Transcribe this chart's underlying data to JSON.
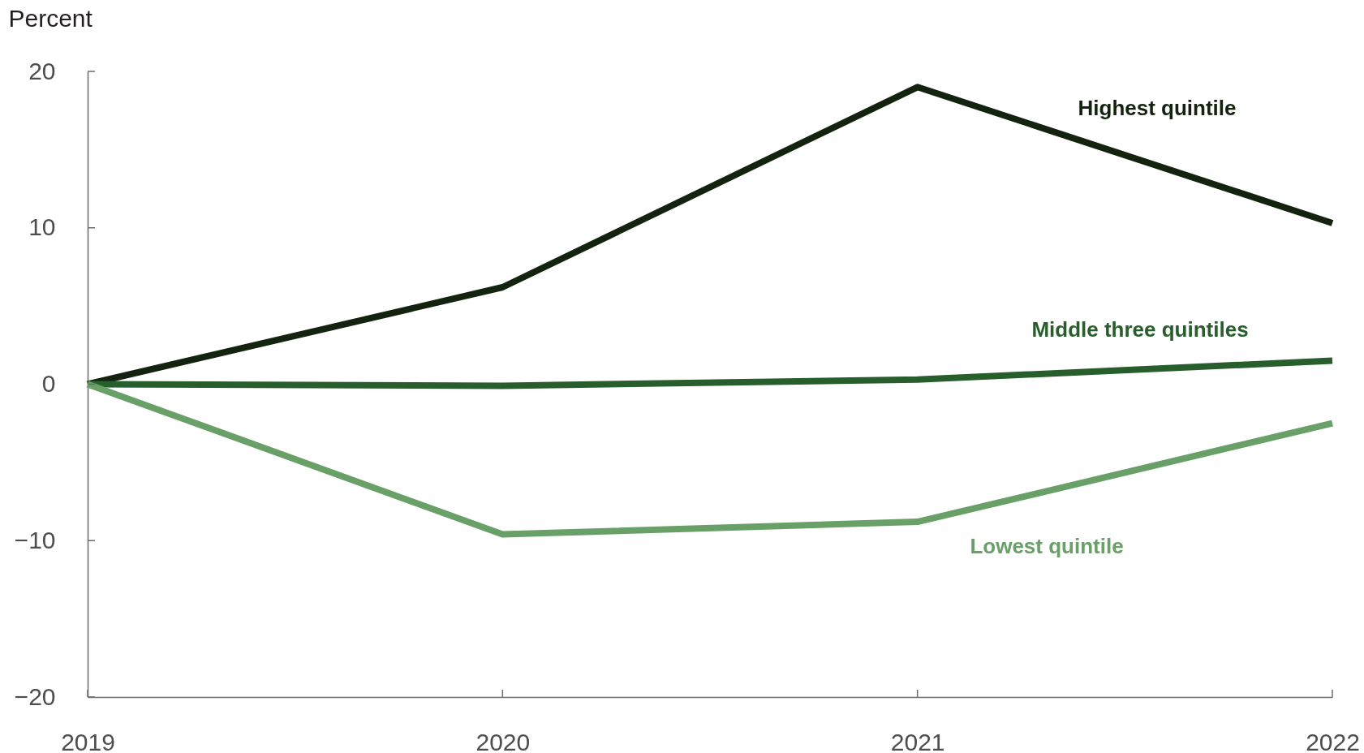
{
  "chart_data": {
    "type": "line",
    "ylabel": "Percent",
    "x": [
      2019,
      2020,
      2021,
      2022
    ],
    "xlim": [
      2019,
      2022
    ],
    "xticks": [
      2019,
      2020,
      2021,
      2022
    ],
    "ylim": [
      -20,
      20
    ],
    "yticks": [
      -20,
      -10,
      0,
      10,
      20
    ],
    "line_style": "solid",
    "series": [
      {
        "name": "Highest quintile",
        "color": "#13230f",
        "values": [
          0,
          6.2,
          19.0,
          10.3
        ]
      },
      {
        "name": "Middle three quintiles",
        "color": "#275e2c",
        "values": [
          0,
          -0.1,
          0.3,
          1.5
        ]
      },
      {
        "name": "Lowest quintile",
        "color": "#69a068",
        "values": [
          0,
          -9.6,
          -8.8,
          -2.5
        ]
      }
    ]
  }
}
